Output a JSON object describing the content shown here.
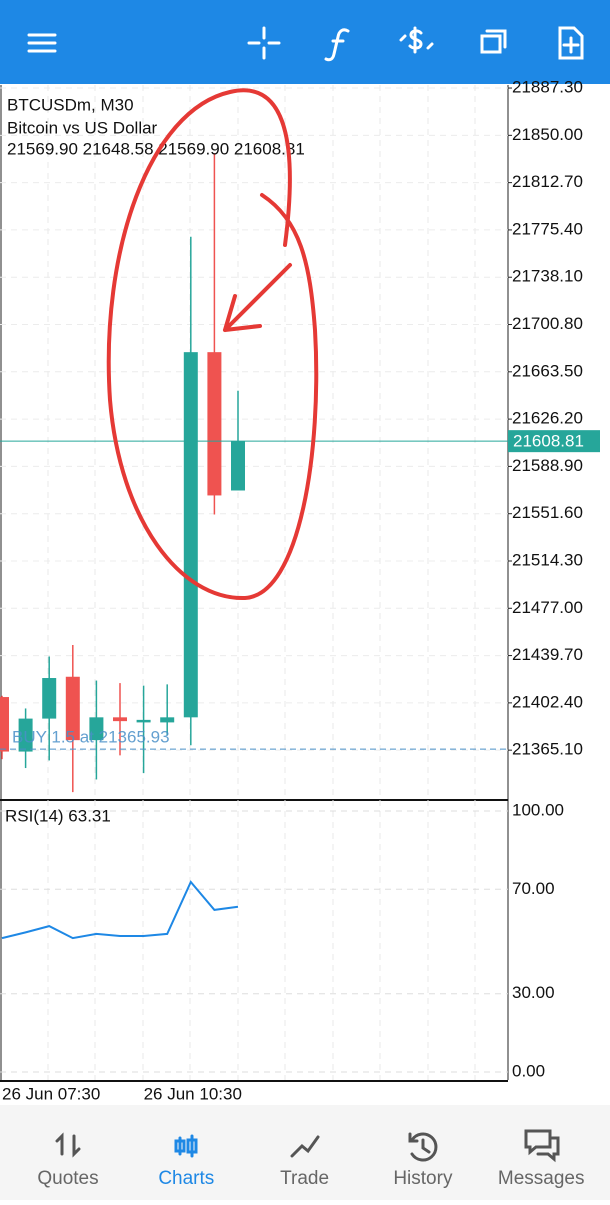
{
  "chart_data": [
    {
      "type": "candlestick",
      "symbol": "BTCUSDm, M30",
      "description": "Bitcoin vs US Dollar",
      "ohlc_line": "21569.90 21648.58 21569.90 21608.81",
      "categories": [
        "26 Jun 07:30",
        null,
        null,
        null,
        null,
        null,
        "26 Jun 10:30",
        null,
        null,
        null,
        null
      ],
      "open": [
        21407,
        21364,
        21390,
        21423,
        21373,
        21391,
        21387,
        21387,
        21391,
        21679,
        21569.9
      ],
      "high": [
        21408,
        21398,
        21439,
        21448,
        21420,
        21418,
        21416,
        21417,
        21770,
        21836,
        21648.58
      ],
      "low": [
        21358,
        21351,
        21357,
        21332,
        21342,
        21361,
        21347,
        21377,
        21369,
        21551,
        21569.9
      ],
      "close": [
        21364,
        21390,
        21422,
        21373,
        21391,
        21388,
        21389,
        21391,
        21679,
        21566,
        21608.81
      ],
      "up_color": "#26a69a",
      "down_color": "#ef5350",
      "ylim": [
        21325.8,
        21889.7
      ],
      "yticks": [
        {
          "value": 21887.3,
          "label": "21887.30"
        },
        {
          "value": 21850,
          "label": "21850.00"
        },
        {
          "value": 21812.7,
          "label": "21812.70"
        },
        {
          "value": 21775.4,
          "label": "21775.40"
        },
        {
          "value": 21738.1,
          "label": "21738.10"
        },
        {
          "value": 21700.8,
          "label": "21700.80"
        },
        {
          "value": 21663.5,
          "label": "21663.50"
        },
        {
          "value": 21626.2,
          "label": "21626.20"
        },
        {
          "value": 21588.9,
          "label": "21588.90"
        },
        {
          "value": 21551.6,
          "label": "21551.60"
        },
        {
          "value": 21514.3,
          "label": "21514.30"
        },
        {
          "value": 21477,
          "label": "21477.00"
        },
        {
          "value": 21439.7,
          "label": "21439.70"
        },
        {
          "value": 21402.4,
          "label": "21402.40"
        },
        {
          "value": 21365.1,
          "label": "21365.10"
        }
      ],
      "grid": true,
      "current_price": 21608.81,
      "current_color": "#26a69a",
      "position_line": {
        "value": 21365.93,
        "label": "BUY 1.5 at 21365.93",
        "color": "#4a90c8"
      }
    },
    {
      "type": "line",
      "title": "RSI(14) 63.31",
      "series": [
        {
          "name": "RSI(14)",
          "color": "#1e88e5",
          "values": [
            51.3,
            53.5,
            55.9,
            51.3,
            52.9,
            52.1,
            52.1,
            52.9,
            72.8,
            62.1,
            63.31
          ]
        }
      ],
      "ylim": [
        0,
        100
      ],
      "yticks": [
        {
          "value": 100,
          "label": "100.00"
        },
        {
          "value": 70,
          "label": "70.00"
        },
        {
          "value": 30,
          "label": "30.00"
        },
        {
          "value": 0,
          "label": "0.00"
        }
      ],
      "grid": true
    }
  ],
  "nav": {
    "tabs": [
      {
        "label": "Quotes",
        "color": "#666666"
      },
      {
        "label": "Charts",
        "color": "#1e88e5"
      },
      {
        "label": "Trade",
        "color": "#666666"
      },
      {
        "label": "History",
        "color": "#666666"
      },
      {
        "label": "Messages",
        "color": "#666666"
      }
    ]
  }
}
